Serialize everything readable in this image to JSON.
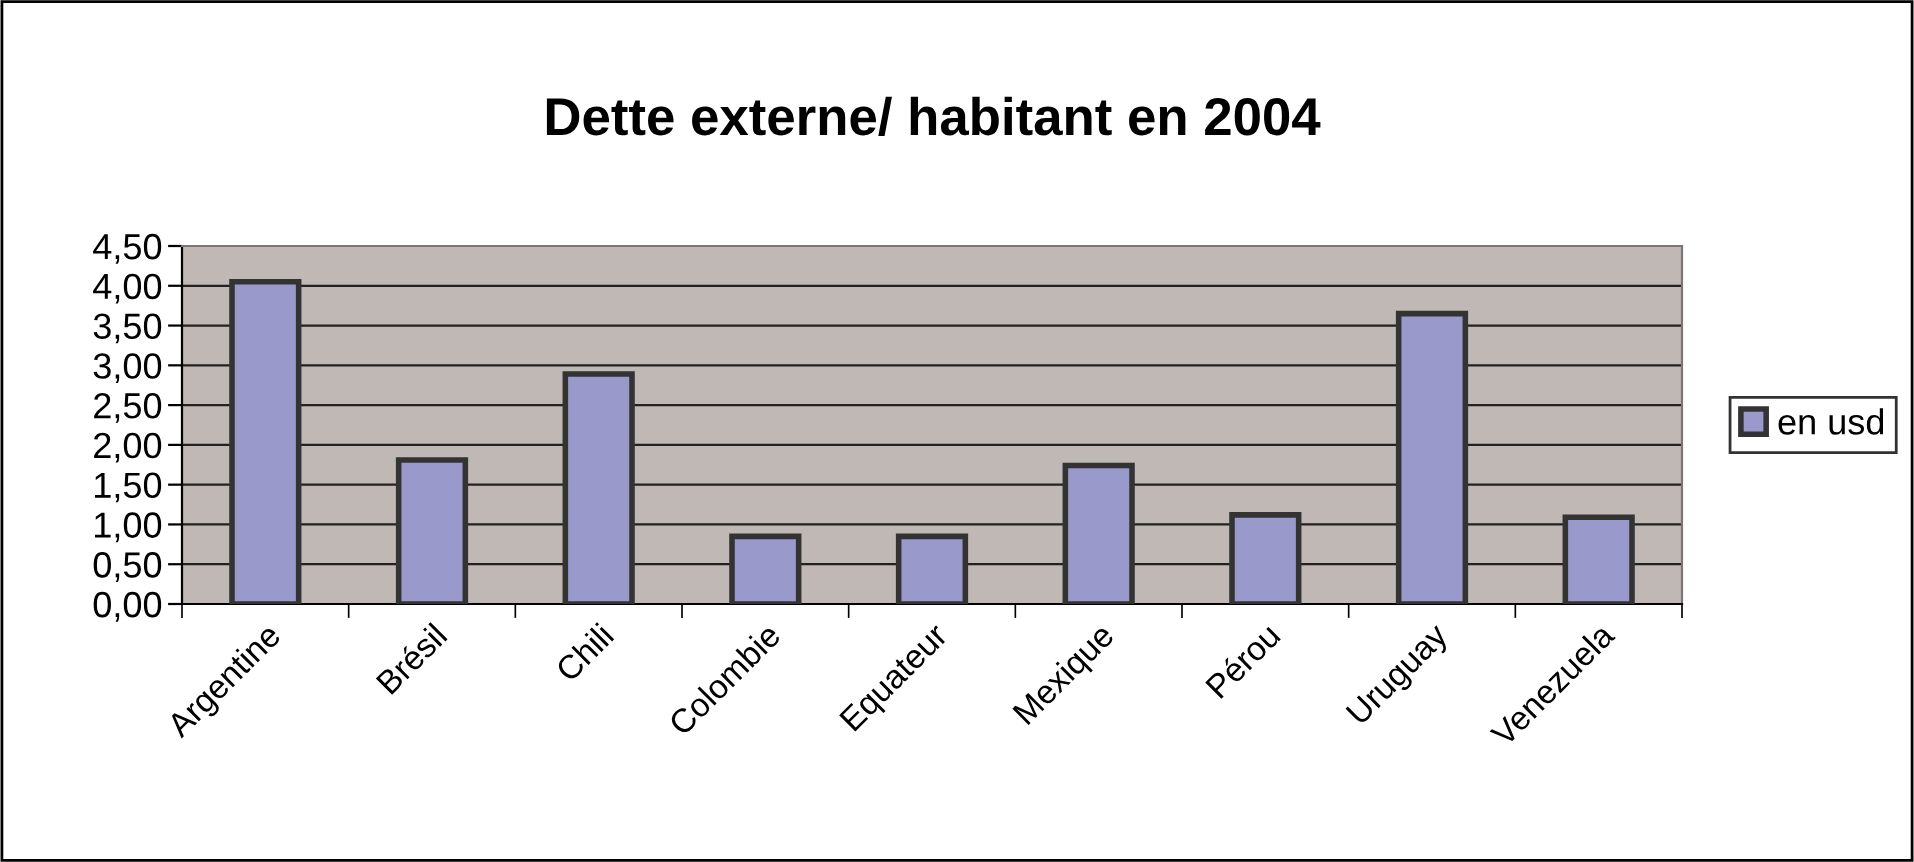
{
  "chart_data": {
    "type": "bar",
    "title": "Dette externe/ habitant en 2004",
    "categories": [
      "Argentine",
      "Brésil",
      "Chili",
      "Colombie",
      "Equateur",
      "Mexique",
      "Pérou",
      "Uruguay",
      "Venezuela"
    ],
    "series": [
      {
        "name": "en usd",
        "color": "#9999cc",
        "values": [
          4.05,
          1.81,
          2.89,
          0.85,
          0.85,
          1.74,
          1.12,
          3.65,
          1.09
        ]
      }
    ],
    "ylim": [
      0,
      4.5
    ],
    "yticks": [
      {
        "value": 0,
        "label": "0,00"
      },
      {
        "value": 0.5,
        "label": "0,50"
      },
      {
        "value": 1,
        "label": "1,00"
      },
      {
        "value": 1.5,
        "label": "1,50"
      },
      {
        "value": 2,
        "label": "2,00"
      },
      {
        "value": 2.5,
        "label": "2,50"
      },
      {
        "value": 3,
        "label": "3,00"
      },
      {
        "value": 3.5,
        "label": "3,50"
      },
      {
        "value": 4,
        "label": "4,00"
      },
      {
        "value": 4.5,
        "label": "4,50"
      }
    ],
    "grid": "y",
    "legend": "right"
  }
}
